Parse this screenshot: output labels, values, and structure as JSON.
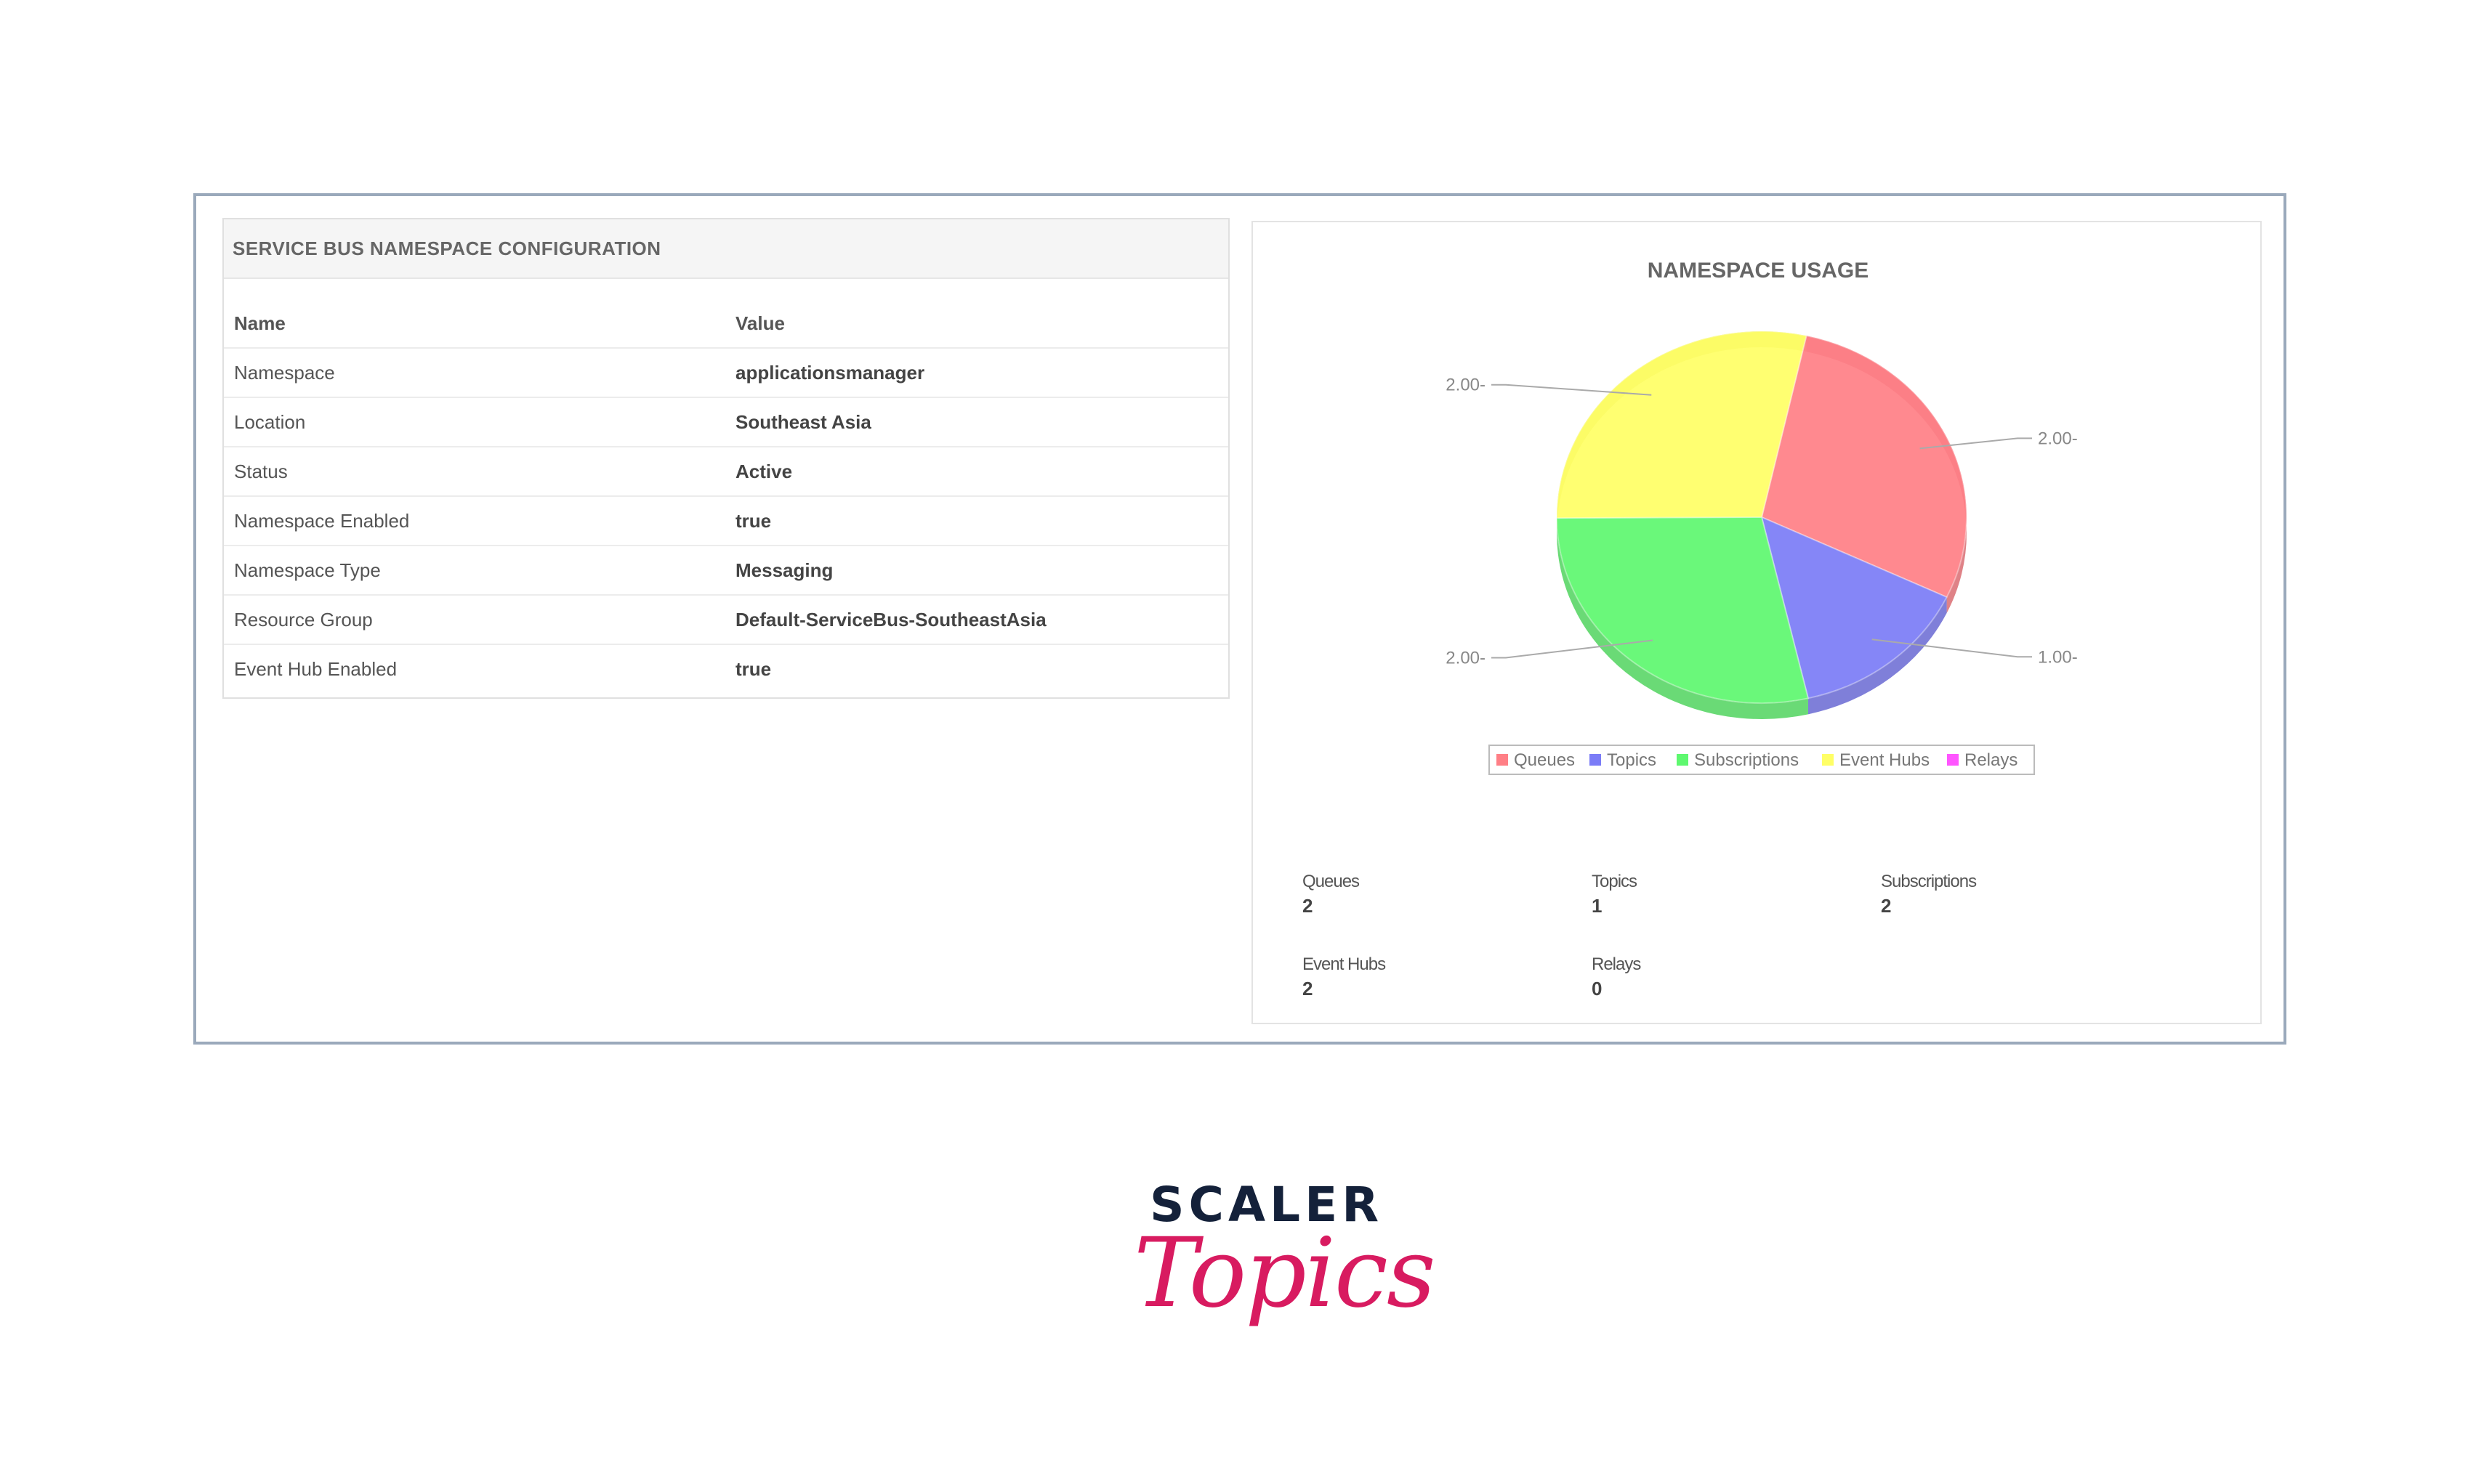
{
  "config": {
    "header": "SERVICE BUS NAMESPACE CONFIGURATION",
    "columns": [
      "Name",
      "Value"
    ],
    "rows": [
      {
        "name": "Namespace",
        "value": "applicationsmanager"
      },
      {
        "name": "Location",
        "value": "Southeast Asia"
      },
      {
        "name": "Status",
        "value": "Active"
      },
      {
        "name": "Namespace Enabled",
        "value": "true"
      },
      {
        "name": "Namespace Type",
        "value": "Messaging"
      },
      {
        "name": "Resource Group",
        "value": "Default-ServiceBus-SoutheastAsia"
      },
      {
        "name": "Event Hub Enabled",
        "value": "true"
      }
    ]
  },
  "chart_data": {
    "type": "pie",
    "title": "NAMESPACE USAGE",
    "categories": [
      "Queues",
      "Topics",
      "Subscriptions",
      "Event Hubs",
      "Relays"
    ],
    "values": [
      2,
      1,
      2,
      2,
      0
    ],
    "value_labels": [
      "2.00-",
      "1.00-",
      "2.00-",
      "2.00-",
      ""
    ],
    "colors": [
      "#ff7f86",
      "#7b7cf7",
      "#5ef86f",
      "#ffff66",
      "#ff55ff"
    ],
    "legend_position": "bottom"
  },
  "stats": [
    {
      "label": "Queues",
      "value": "2"
    },
    {
      "label": "Topics",
      "value": "1"
    },
    {
      "label": "Subscriptions",
      "value": "2"
    },
    {
      "label": "Event Hubs",
      "value": "2"
    },
    {
      "label": "Relays",
      "value": "0"
    }
  ],
  "logo": {
    "word": "SCALER",
    "script": "Topics"
  }
}
